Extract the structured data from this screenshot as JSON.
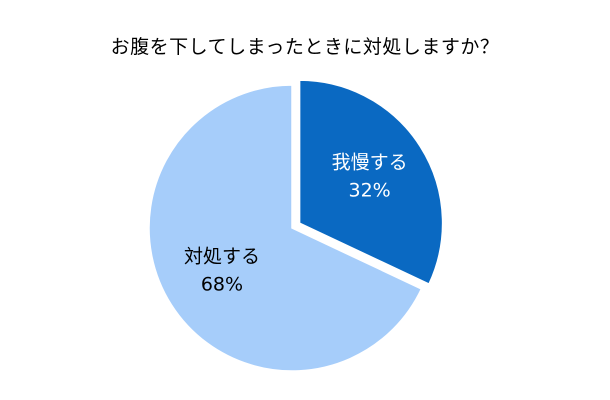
{
  "chart_data": {
    "type": "pie",
    "title": "お腹を下してしまったときに対処しますか？",
    "slices": [
      {
        "label": "我慢する",
        "value": 32,
        "value_label": "32%",
        "color": "#0a69c2",
        "label_color": "#ffffff",
        "exploded": true
      },
      {
        "label": "対処する",
        "value": 68,
        "value_label": "68%",
        "color": "#a6cdfa",
        "label_color": "#000000",
        "exploded": false
      }
    ],
    "start_angle": "12 o'clock",
    "direction": "clockwise",
    "legend": "none"
  }
}
